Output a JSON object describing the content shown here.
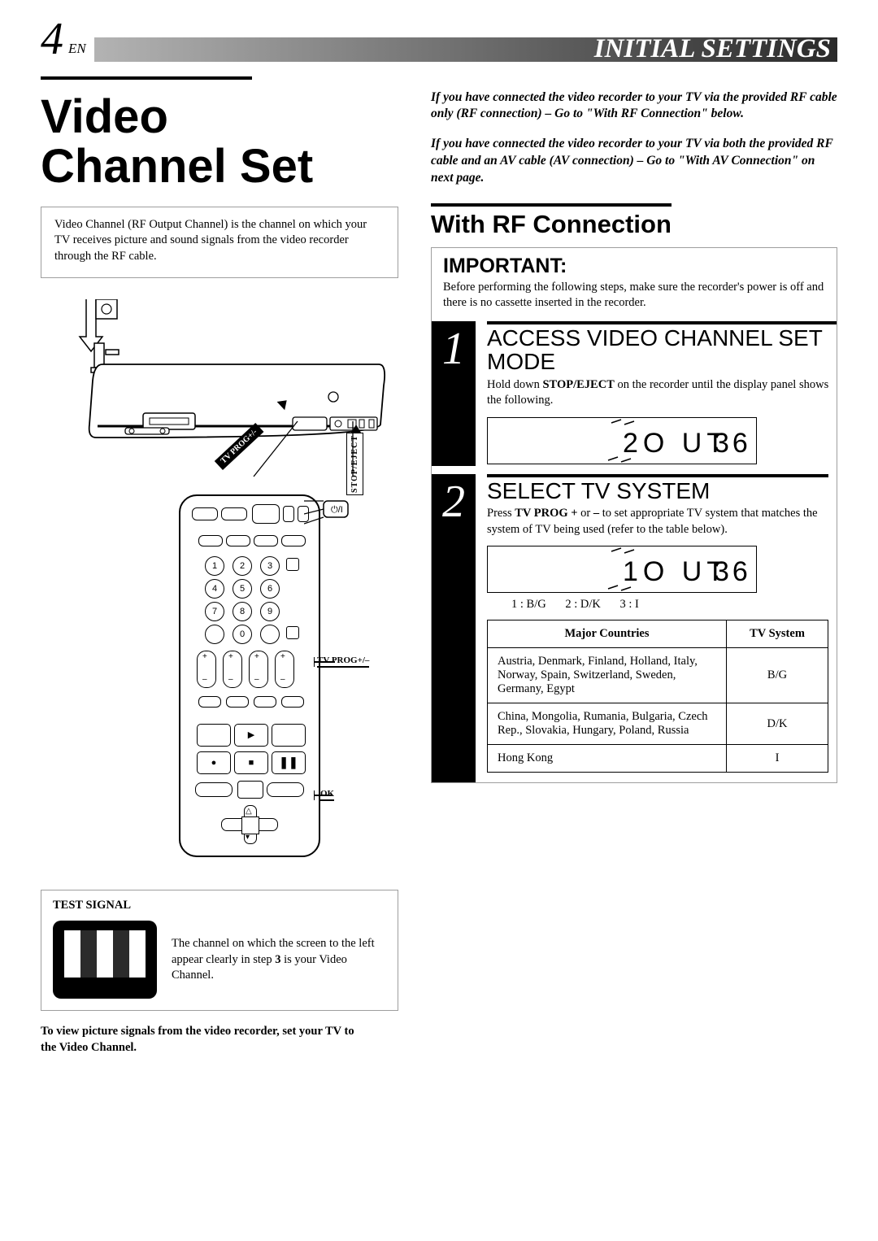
{
  "header": {
    "page_number": "4",
    "page_suffix": "EN",
    "section_title": "INITIAL SETTINGS",
    "gradient_start": "#b3b3b3",
    "gradient_end": "#2a2a2a",
    "title_color": "#ffffff"
  },
  "left": {
    "main_title": "Video\nChannel Set",
    "intro": "Video Channel (RF Output Channel) is the channel on which your TV receives picture and sound signals from the video recorder through the RF cable.",
    "illustration_labels": {
      "tv_prog": "TV PROG+/–",
      "stop_eject": "STOP/EJECT",
      "tv_prog_rot": "TV PROG+/-",
      "ok": "OK"
    },
    "test_signal": {
      "heading": "TEST SIGNAL",
      "note": "The channel on which the screen to the left appear clearly in step 3 is your Video Channel.",
      "note_bold_digit": "3",
      "bars_pattern": [
        "#ffffff",
        "#2b2b2b",
        "#ffffff",
        "#2b2b2b",
        "#ffffff"
      ],
      "screen_bg": "#000000"
    },
    "footer_note": "To view picture signals from the video recorder, set your TV to the Video Channel."
  },
  "right": {
    "intro1": "If you have connected the video recorder to your TV via the provided RF cable only (RF connection) – Go to \"With RF Connection\" below.",
    "intro2": "If you have connected the video recorder to your TV via both the provided RF cable and an AV cable (AV connection) – Go to \"With AV Connection\" on next page.",
    "with_rf_title": "With RF Connection",
    "important": {
      "label": "IMPORTANT:",
      "text": "Before performing the following steps, make sure the recorder's power is off and there is no cassette inserted in the recorder."
    },
    "step1": {
      "num": "1",
      "title": "ACCESS VIDEO CHANNEL SET MODE",
      "para_pre": "Hold down ",
      "para_bold": "STOP/EJECT",
      "para_post": " on the recorder until the display panel shows the following.",
      "display_text": "2O UT  36"
    },
    "step2": {
      "num": "2",
      "title": "SELECT TV SYSTEM",
      "para_pre": "Press ",
      "para_bold1": "TV PROG +",
      "para_mid": " or ",
      "para_bold2": "–",
      "para_post": " to set appropriate TV system that matches the system of TV being used (refer to the table below).",
      "display_text": "1O UT  36",
      "codes": [
        "1 : B/G",
        "2 : D/K",
        "3 : I"
      ],
      "table": {
        "columns": [
          "Major Countries",
          "TV System"
        ],
        "rows": [
          [
            "Austria, Denmark, Finland, Holland, Italy, Norway, Spain, Switzerland, Sweden, Germany, Egypt",
            "B/G"
          ],
          [
            "China, Mongolia, Rumania, Bulgaria, Czech Rep., Slovakia, Hungary, Poland, Russia",
            "D/K"
          ],
          [
            "Hong Kong",
            "I"
          ]
        ]
      }
    }
  },
  "style": {
    "page_bg": "#ffffff",
    "text_color": "#000000",
    "rule_color": "#000000",
    "box_border": "#9e9e9e"
  }
}
